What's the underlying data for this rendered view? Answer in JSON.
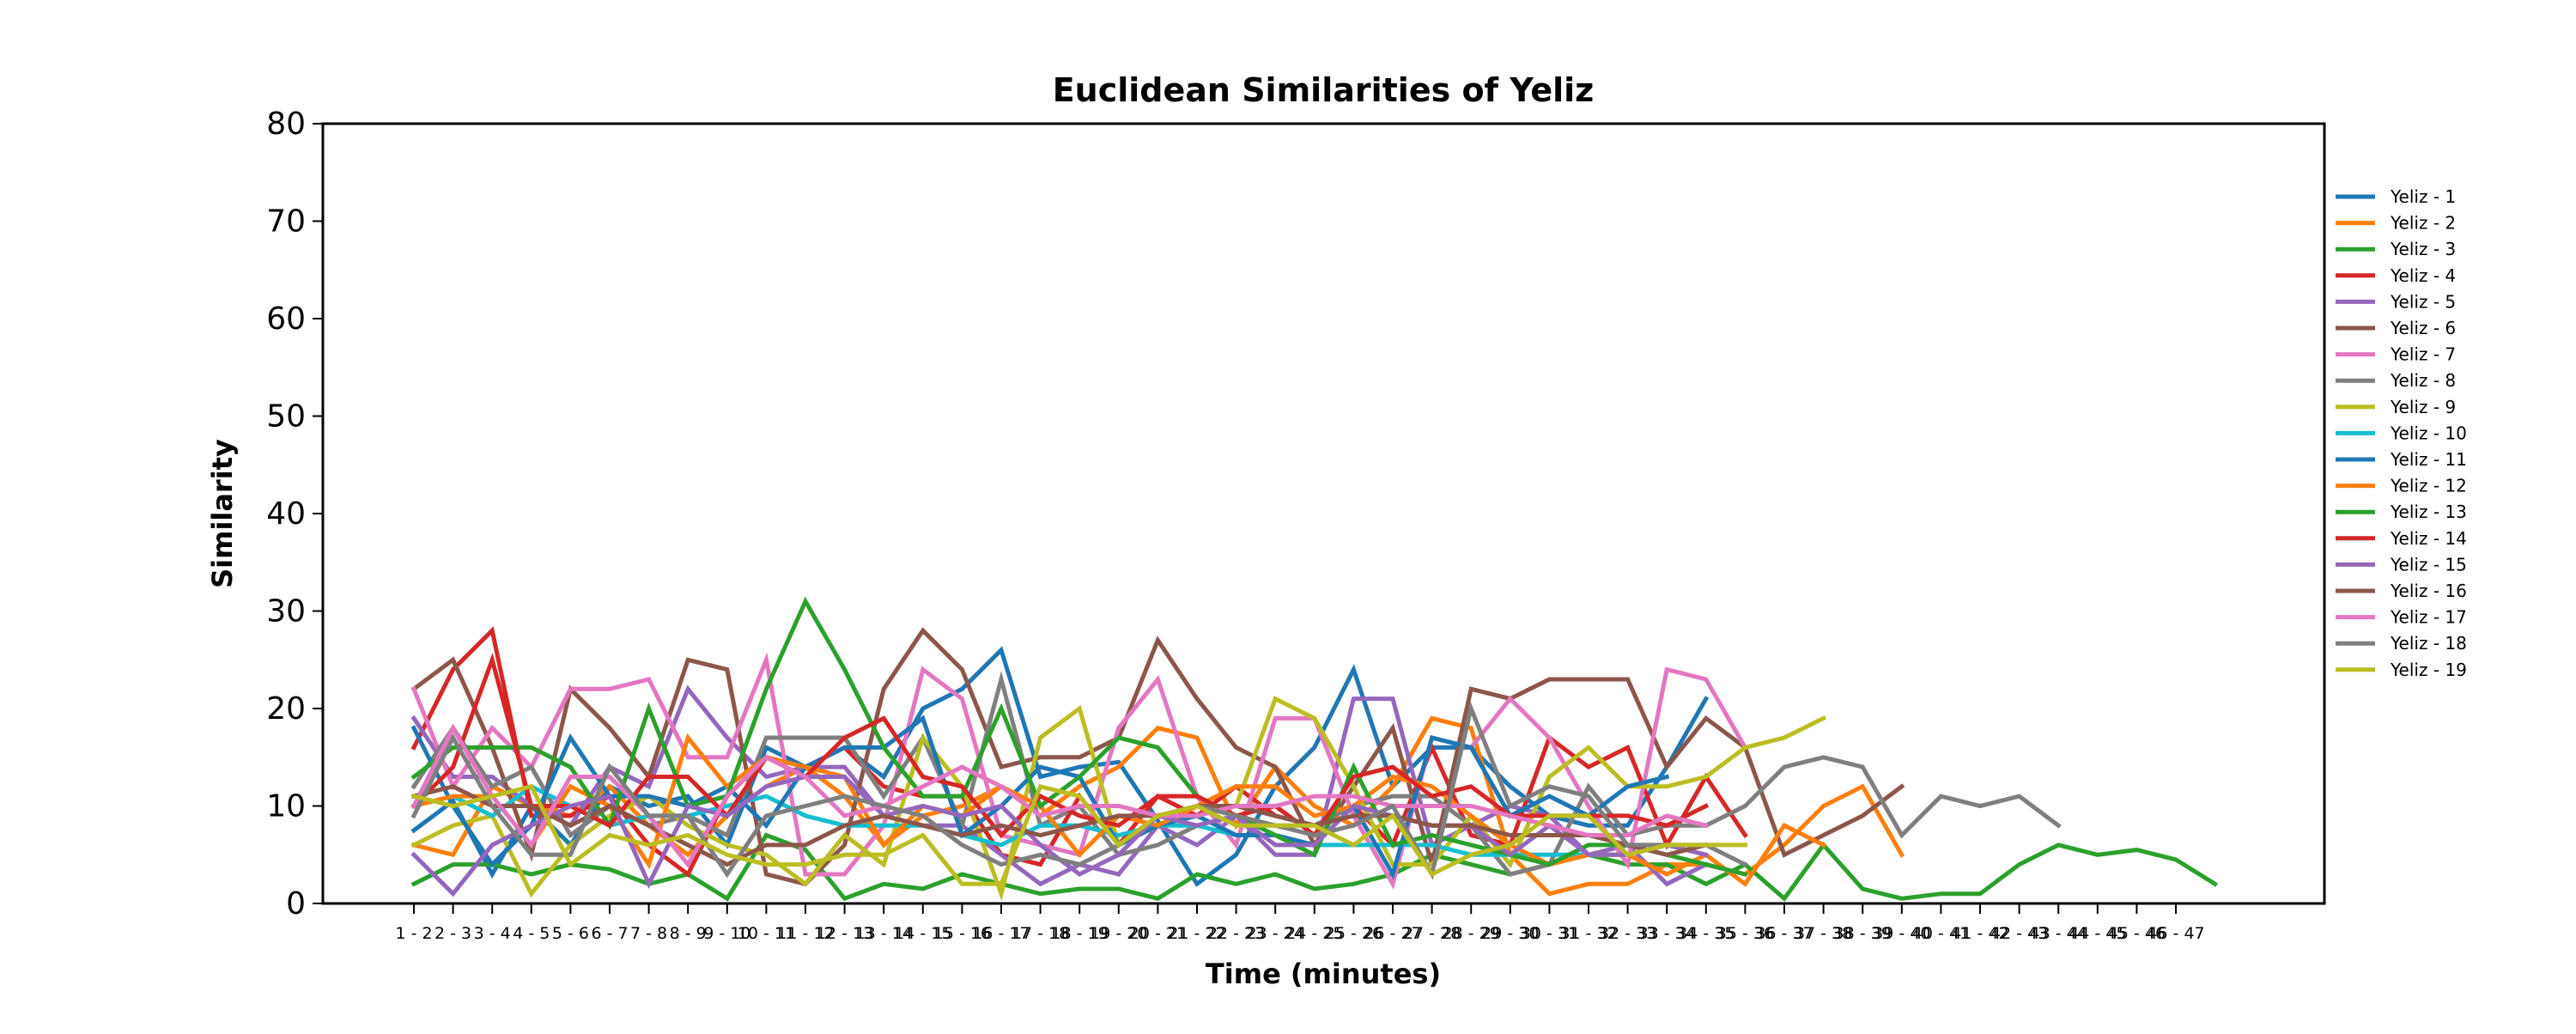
{
  "chart_data": {
    "type": "line",
    "title": "Euclidean Similarities of Yeliz",
    "xlabel": "Time (minutes)",
    "ylabel": "Similarity",
    "ylim": [
      0,
      80
    ],
    "yticks": [
      0,
      10,
      20,
      30,
      40,
      50,
      60,
      70,
      80
    ],
    "grid": false,
    "legend_position": "outside-right",
    "x_tick_labels": [
      "1 - 2",
      "2 - 3",
      "3 - 4",
      "4 - 5",
      "5 - 6",
      "6 - 7",
      "7 - 8",
      "8 - 9",
      "9 - 10",
      "10 - 11",
      "11 - 12",
      "12 - 13",
      "13 - 14",
      "14 - 15",
      "15 - 16",
      "16 - 17",
      "17 - 18",
      "18 - 19",
      "19 - 20",
      "20 - 21",
      "21 - 22",
      "22 - 23",
      "23 - 24",
      "24 - 25",
      "25 - 26",
      "26 - 27",
      "27 - 28",
      "28 - 29",
      "29 - 30",
      "30 - 31",
      "31 - 32",
      "32 - 33",
      "33 - 34",
      "34 - 35",
      "35 - 36",
      "36 - 37",
      "37 - 38",
      "38 - 39",
      "39 - 40",
      "40 - 41",
      "41 - 42",
      "42 - 43",
      "43 - 44",
      "44 - 45",
      "45 - 46",
      "46 - 47"
    ],
    "series": [
      {
        "name": "Yeliz - 1",
        "color": "#1f77b4",
        "values": [
          7.5,
          10.5,
          3,
          10,
          6,
          12,
          10,
          11,
          6,
          16,
          14,
          16,
          13,
          20,
          22,
          26,
          13,
          14,
          14.5,
          8.5,
          2,
          5,
          12,
          16,
          24,
          12,
          16,
          16,
          12,
          9,
          8,
          8,
          14,
          21
        ]
      },
      {
        "name": "Yeliz - 2",
        "color": "#ff7f0e",
        "values": [
          6,
          5,
          12,
          10,
          9,
          12,
          8,
          5,
          9,
          12,
          14,
          11,
          6,
          9,
          10,
          12,
          9,
          12,
          14,
          18,
          17,
          8,
          14,
          10,
          8,
          12,
          19,
          18,
          5,
          1,
          2,
          2,
          4,
          4,
          3,
          6,
          10,
          12,
          5
        ]
      },
      {
        "name": "Yeliz - 3",
        "color": "#2ca02c",
        "values": [
          2,
          4,
          4,
          3,
          4,
          3.5,
          2,
          3,
          0.5,
          7,
          5.5,
          0.5,
          2,
          1.5,
          3,
          2,
          1,
          1.5,
          1.5,
          0.5,
          3,
          2,
          3,
          1.5,
          2,
          3,
          5,
          4,
          3,
          4,
          5,
          4,
          4,
          2,
          4,
          0.5,
          6,
          1.5,
          0.5,
          1,
          1,
          4,
          6,
          5,
          5.5,
          4.5,
          2
        ]
      },
      {
        "name": "Yeliz - 4",
        "color": "#d62728",
        "values": [
          16,
          24,
          28,
          9,
          9,
          11,
          6,
          3,
          11,
          15,
          14,
          16,
          12,
          11,
          11,
          5,
          4,
          11,
          6,
          11,
          9,
          12,
          9,
          8,
          10,
          6,
          16,
          7,
          6,
          17,
          14,
          16,
          6,
          13,
          7
        ]
      },
      {
        "name": "Yeliz - 5",
        "color": "#9467bd",
        "values": [
          19,
          13,
          13,
          10,
          8,
          14,
          12,
          22,
          17,
          13,
          14,
          14,
          9,
          8,
          8,
          5,
          2,
          4,
          3,
          8,
          6,
          9,
          5,
          5,
          21,
          21,
          6,
          8,
          10,
          9,
          5,
          6,
          2,
          4
        ]
      },
      {
        "name": "Yeliz - 6",
        "color": "#8c564b",
        "values": [
          22,
          25,
          16,
          5,
          22,
          18,
          13,
          25,
          24,
          3,
          2,
          6,
          22,
          28,
          24,
          14,
          15,
          15,
          17,
          27,
          21,
          16,
          14,
          6,
          12,
          18,
          4,
          22,
          21,
          23,
          23,
          23,
          14,
          19,
          16,
          5,
          7,
          9,
          12
        ]
      },
      {
        "name": "Yeliz - 7",
        "color": "#e377c2",
        "values": [
          22,
          12,
          18,
          14,
          22,
          22,
          23,
          15,
          15,
          25,
          3,
          3,
          8,
          24,
          21,
          7,
          6,
          5,
          18,
          23,
          11,
          6,
          19,
          19,
          9,
          2,
          17,
          16,
          21,
          17,
          10,
          4,
          24,
          23,
          16
        ]
      },
      {
        "name": "Yeliz - 8",
        "color": "#7f7f7f",
        "values": [
          12,
          18,
          12,
          14,
          7,
          10,
          8,
          9,
          7,
          17,
          17,
          17,
          11,
          17,
          8,
          23,
          8,
          10,
          5,
          6,
          8,
          9,
          8,
          8,
          10,
          11,
          11,
          8,
          3,
          4,
          12,
          7,
          8,
          8,
          10,
          14,
          15,
          14,
          7,
          11,
          10,
          11,
          8
        ]
      },
      {
        "name": "Yeliz - 9",
        "color": "#bcbd22",
        "values": [
          6,
          8,
          9,
          1,
          6,
          9,
          11,
          8,
          6,
          5,
          2,
          7,
          4,
          17,
          12,
          1,
          17,
          20,
          6,
          8,
          10,
          10,
          21,
          19,
          12,
          4,
          4,
          9,
          4,
          13,
          16,
          12,
          12,
          13,
          16,
          17,
          19
        ]
      },
      {
        "name": "Yeliz - 10",
        "color": "#17becf",
        "values": [
          10,
          11,
          9,
          12,
          10,
          8,
          9,
          9,
          10,
          11,
          9,
          8,
          8,
          8,
          7,
          6,
          8,
          8,
          7,
          8,
          8,
          7,
          7,
          6,
          6,
          6,
          6,
          5,
          5,
          5,
          5,
          5
        ]
      },
      {
        "name": "Yeliz - 11",
        "color": "#1f77b4",
        "values": [
          18,
          10,
          4,
          8,
          17,
          11,
          11,
          10,
          12,
          8,
          14,
          16,
          16,
          19,
          7,
          10,
          14,
          13,
          6,
          8,
          9,
          7,
          7,
          6,
          10,
          3,
          17,
          16,
          9,
          11,
          9,
          12,
          13
        ]
      },
      {
        "name": "Yeliz - 12",
        "color": "#ff7f0e",
        "values": [
          10,
          11,
          11,
          6,
          12,
          10,
          4,
          17,
          12,
          15,
          14,
          13,
          6,
          10,
          9,
          12,
          10,
          5,
          9,
          8,
          10,
          12,
          12,
          9,
          10,
          13,
          12,
          9,
          6,
          4,
          5,
          5,
          3,
          5,
          2,
          8,
          6
        ]
      },
      {
        "name": "Yeliz - 13",
        "color": "#2ca02c",
        "values": [
          13,
          16,
          16,
          16,
          14,
          8,
          20,
          10,
          11,
          22,
          31,
          24,
          16,
          11,
          11,
          20,
          10,
          13,
          17,
          16,
          11,
          9,
          7,
          5,
          14,
          6,
          7,
          6,
          5,
          4,
          6,
          6,
          5,
          4,
          3
        ]
      },
      {
        "name": "Yeliz - 14",
        "color": "#d62728",
        "values": [
          10,
          14,
          25,
          10,
          10,
          8,
          13,
          13,
          9,
          15,
          13,
          17,
          19,
          13,
          12,
          7,
          11,
          9,
          8,
          11,
          11,
          9,
          10,
          7,
          13,
          14,
          11,
          12,
          9,
          9,
          9,
          9,
          8,
          10
        ]
      },
      {
        "name": "Yeliz - 15",
        "color": "#9467bd",
        "values": [
          5,
          1,
          6,
          8,
          10,
          11,
          2,
          10,
          9,
          12,
          13,
          13,
          9,
          10,
          9,
          10,
          6,
          3,
          5,
          9,
          8,
          9,
          6,
          6,
          10,
          9,
          8,
          8,
          5,
          8,
          5,
          5,
          6,
          5
        ]
      },
      {
        "name": "Yeliz - 16",
        "color": "#8c564b",
        "values": [
          11,
          12,
          10,
          10,
          8,
          10,
          8,
          6,
          4,
          6,
          6,
          8,
          9,
          8,
          7,
          8,
          7,
          8,
          9,
          9,
          10,
          10,
          9,
          8,
          9,
          9,
          8,
          8,
          7,
          7,
          7,
          6,
          5,
          6
        ]
      },
      {
        "name": "Yeliz - 17",
        "color": "#e377c2",
        "values": [
          10,
          18,
          11,
          6,
          13,
          13,
          9,
          4,
          11,
          15,
          13,
          9,
          10,
          12,
          14,
          12,
          9,
          10,
          10,
          9,
          9,
          10,
          10,
          11,
          11,
          10,
          10,
          10,
          9,
          8,
          7,
          7,
          9,
          8
        ]
      },
      {
        "name": "Yeliz - 18",
        "color": "#7f7f7f",
        "values": [
          9,
          17,
          10,
          5,
          5,
          14,
          9,
          9,
          3,
          9,
          10,
          11,
          10,
          9,
          6,
          4,
          5,
          4,
          6,
          9,
          10,
          9,
          8,
          7,
          8,
          10,
          3,
          20,
          10,
          12,
          11,
          6,
          6,
          6,
          4
        ]
      },
      {
        "name": "Yeliz - 19",
        "color": "#bcbd22",
        "values": [
          11,
          10,
          11,
          12,
          4,
          7,
          6,
          7,
          5,
          4,
          4,
          5,
          5,
          7,
          2,
          2,
          12,
          11,
          6,
          9,
          10,
          8,
          8,
          8,
          6,
          9,
          3,
          5,
          6,
          9,
          9,
          5,
          6,
          6,
          6
        ]
      }
    ]
  }
}
